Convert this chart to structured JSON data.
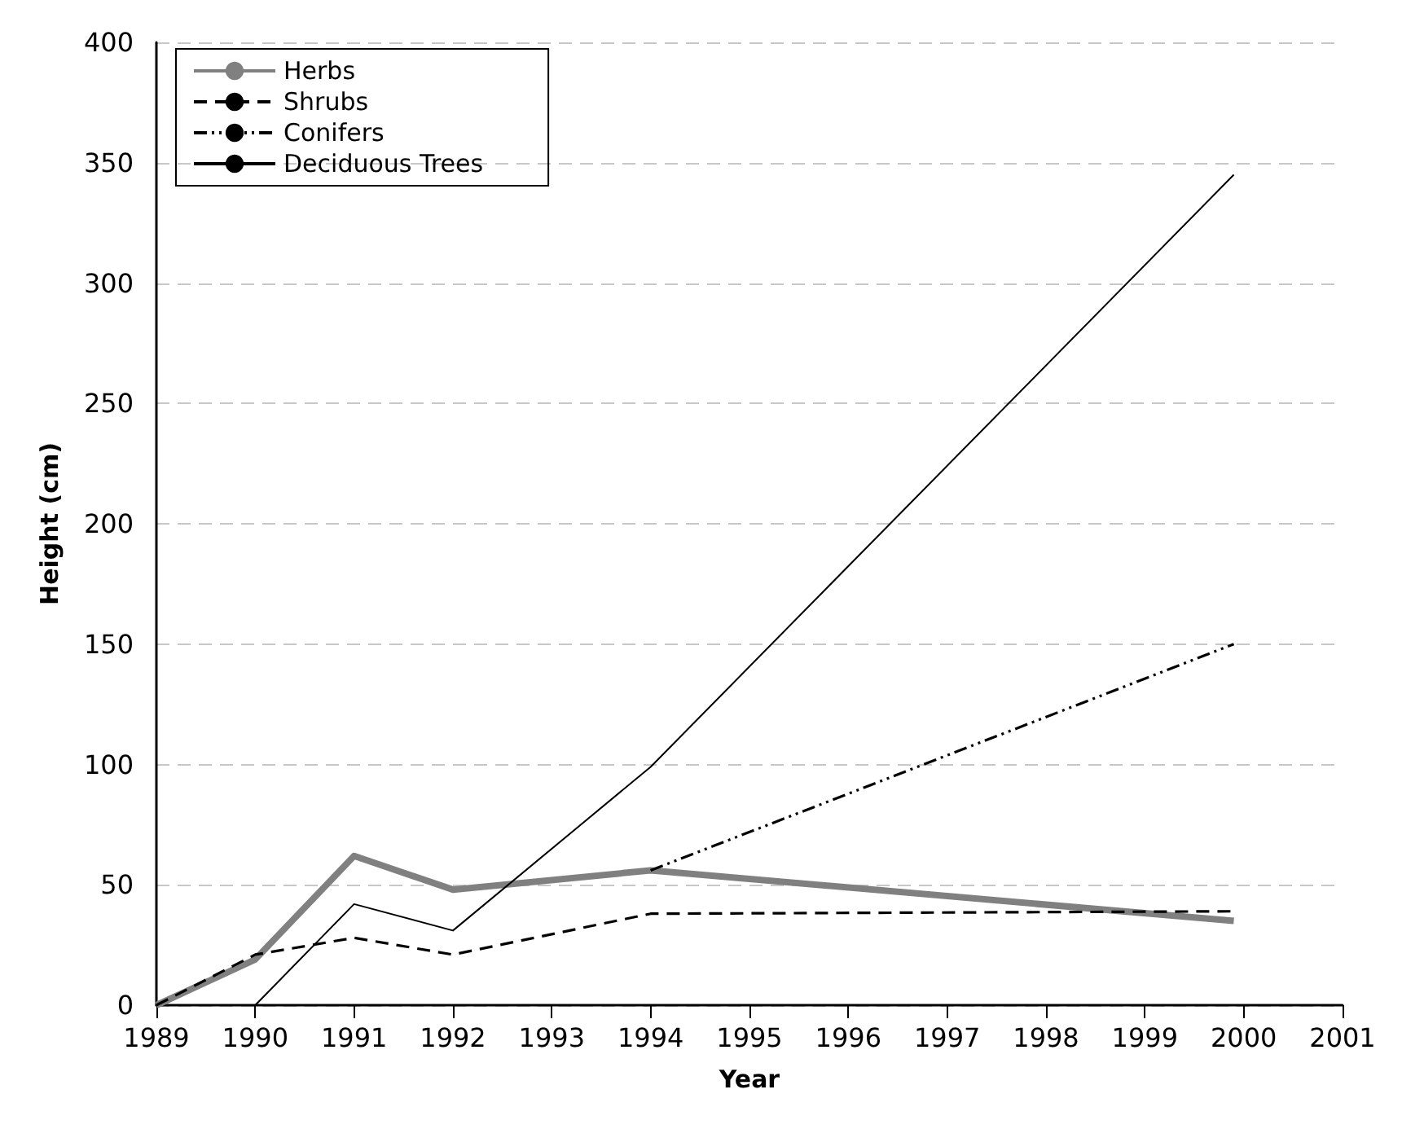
{
  "chart_data": {
    "type": "line",
    "xlabel": "Year",
    "ylabel": "Height (cm)",
    "xlim": [
      1989,
      2001
    ],
    "xticks": [
      1989,
      1990,
      1991,
      1992,
      1993,
      1994,
      1995,
      1996,
      1997,
      1998,
      1999,
      2000,
      2001
    ],
    "ylim": [
      0,
      400
    ],
    "yticks": [
      0,
      50,
      100,
      150,
      200,
      250,
      300,
      350,
      400
    ],
    "grid": "y",
    "legend": "top left",
    "marker": "none",
    "series": [
      {
        "name": "Herbs",
        "color": "#808080",
        "line_style": "solid",
        "x": [
          1989,
          1990,
          1991,
          1992,
          1994,
          1999.9
        ],
        "values": [
          0,
          19,
          62,
          48,
          56,
          35
        ]
      },
      {
        "name": "Shrubs",
        "color": "#000000",
        "line_style": "dashed",
        "x": [
          1989,
          1990,
          1991,
          1992,
          1994,
          1999.9
        ],
        "values": [
          0,
          21,
          28,
          21,
          38,
          39
        ]
      },
      {
        "name": "Conifers",
        "color": "#000000",
        "line_style": "dotted",
        "x": [
          1994,
          1999.9
        ],
        "values": [
          56,
          150
        ]
      },
      {
        "name": "Deciduous Trees",
        "color": "#000000",
        "line_style": "solid",
        "x": [
          1990,
          1991,
          1992,
          1994,
          1999.9
        ],
        "values": [
          0,
          42,
          31,
          99,
          345
        ]
      }
    ]
  }
}
